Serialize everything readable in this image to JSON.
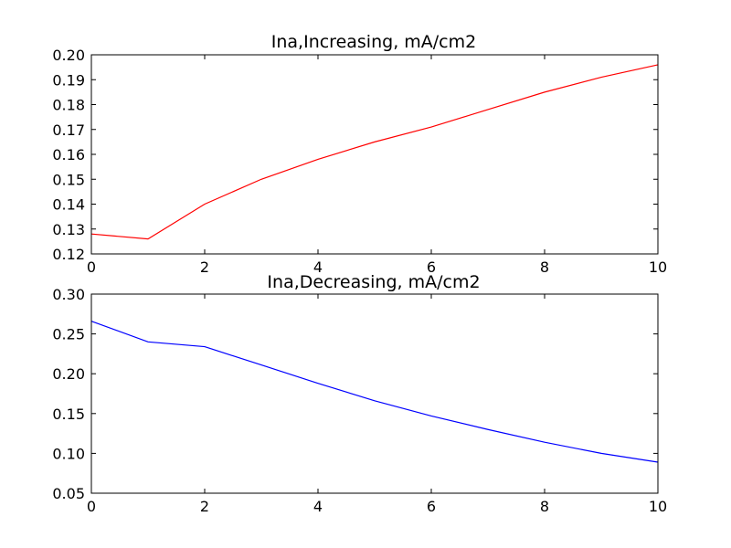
{
  "chart_data": [
    {
      "type": "line",
      "title": "Ina,Increasing, mA/cm2",
      "xlabel": "",
      "ylabel": "",
      "xlim": [
        0,
        10
      ],
      "ylim": [
        0.12,
        0.2
      ],
      "xticks": [
        0,
        2,
        4,
        6,
        8,
        10
      ],
      "yticks": [
        0.12,
        0.13,
        0.14,
        0.15,
        0.16,
        0.17,
        0.18,
        0.19,
        0.2
      ],
      "ytick_decimals": 2,
      "grid": false,
      "color": "#ff0000",
      "x": [
        0,
        1,
        2,
        3,
        4,
        5,
        6,
        7,
        8,
        9,
        10
      ],
      "y": [
        0.128,
        0.126,
        0.14,
        0.15,
        0.158,
        0.165,
        0.171,
        0.178,
        0.185,
        0.191,
        0.196
      ]
    },
    {
      "type": "line",
      "title": "Ina,Decreasing, mA/cm2",
      "xlabel": "",
      "ylabel": "",
      "xlim": [
        0,
        10
      ],
      "ylim": [
        0.05,
        0.3
      ],
      "xticks": [
        0,
        2,
        4,
        6,
        8,
        10
      ],
      "yticks": [
        0.05,
        0.1,
        0.15,
        0.2,
        0.25,
        0.3
      ],
      "ytick_decimals": 2,
      "grid": false,
      "color": "#0000ff",
      "x": [
        0,
        1,
        2,
        3,
        4,
        5,
        6,
        7,
        8,
        9,
        10
      ],
      "y": [
        0.266,
        0.24,
        0.234,
        0.211,
        0.188,
        0.166,
        0.147,
        0.13,
        0.114,
        0.1,
        0.089
      ]
    }
  ]
}
